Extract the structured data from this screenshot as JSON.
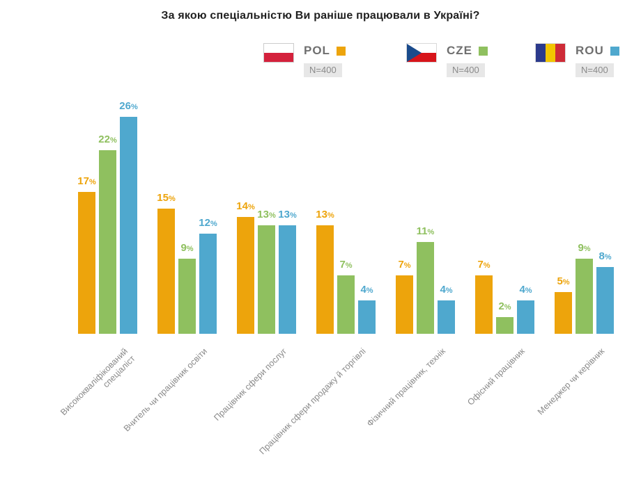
{
  "title": "За якою спеціальністю Ви раніше працювали в Україні?",
  "legend": {
    "items": [
      {
        "code": "POL",
        "n_label": "N=400",
        "flag": "poland-flag",
        "swatch_color": "#eda40c"
      },
      {
        "code": "CZE",
        "n_label": "N=400",
        "flag": "czechia-flag",
        "swatch_color": "#8fc05f"
      },
      {
        "code": "ROU",
        "n_label": "N=400",
        "flag": "romania-flag",
        "swatch_color": "#4fa8ce"
      }
    ]
  },
  "chart_data": {
    "type": "bar",
    "title": "За якою спеціальністю Ви раніше працювали в Україні?",
    "categories": [
      "Висококваліфікований\nспеціаліст",
      "Вчитель чи працівник освіти",
      "Працівник сфери послуг",
      "Працівник сфери продажу й торгівлі",
      "Фізичний працівник, технік",
      "Офісний працівник",
      "Менеджер чи керівник"
    ],
    "series": [
      {
        "name": "POL",
        "color": "#eda40c",
        "n": 400,
        "values": [
          17,
          15,
          14,
          13,
          7,
          7,
          5
        ]
      },
      {
        "name": "CZE",
        "color": "#8fc05f",
        "n": 400,
        "values": [
          22,
          9,
          13,
          7,
          11,
          2,
          9
        ]
      },
      {
        "name": "ROU",
        "color": "#4fa8ce",
        "n": 400,
        "values": [
          26,
          12,
          13,
          4,
          4,
          4,
          8
        ]
      }
    ],
    "value_suffix": "%",
    "xlabel": "",
    "ylabel": "",
    "ylim": [
      0,
      28
    ],
    "grid": false,
    "axis_lines": false,
    "legend_position": "top",
    "x_label_rotation_deg": 45
  }
}
